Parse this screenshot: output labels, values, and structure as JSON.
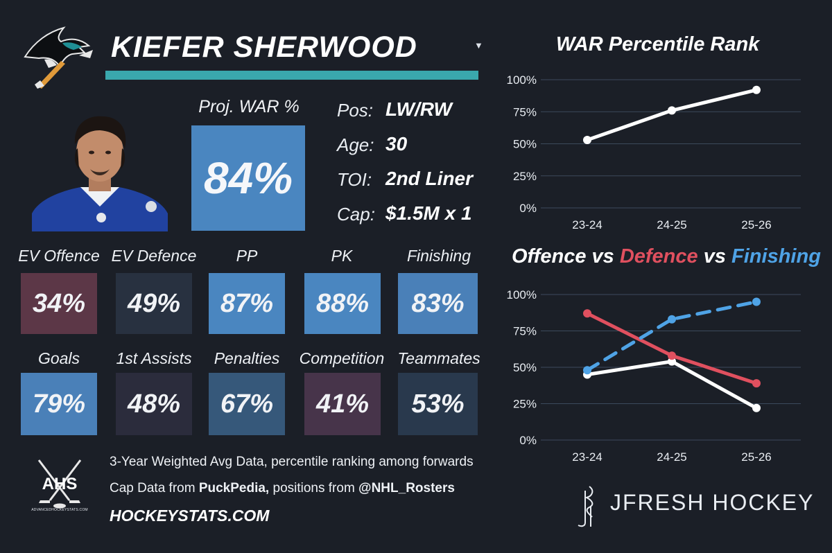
{
  "player": {
    "name": "KIEFER SHERWOOD",
    "war_label": "Proj. WAR %",
    "war_value": "84%",
    "war_color": "#4a86c0",
    "info": [
      {
        "label": "Pos:",
        "value": "LW/RW"
      },
      {
        "label": "Age:",
        "value": "30"
      },
      {
        "label": "TOI:",
        "value": "2nd Liner"
      },
      {
        "label": "Cap:",
        "value": "$1.5M x 1"
      }
    ]
  },
  "metrics_row1": [
    {
      "label": "EV Offence",
      "value": "34%",
      "color": "#5c3747"
    },
    {
      "label": "EV Defence",
      "value": "49%",
      "color": "#283140"
    },
    {
      "label": "PP",
      "value": "87%",
      "color": "#4a86c0"
    },
    {
      "label": "PK",
      "value": "88%",
      "color": "#4a86c0"
    },
    {
      "label": "Finishing",
      "value": "83%",
      "color": "#4a80b8"
    }
  ],
  "metrics_row2": [
    {
      "label": "Goals",
      "value": "79%",
      "color": "#4a80b8"
    },
    {
      "label": "1st Assists",
      "value": "48%",
      "color": "#2b2c3c"
    },
    {
      "label": "Penalties",
      "value": "67%",
      "color": "#36587a"
    },
    {
      "label": "Competition",
      "value": "41%",
      "color": "#47344a"
    },
    {
      "label": "Teammates",
      "value": "53%",
      "color": "#29394d"
    }
  ],
  "footer": {
    "line1": "3-Year Weighted Avg Data, percentile ranking among forwards",
    "line2_prefix": "Cap Data from ",
    "line2_bold1": "PuckPedia,",
    "line2_mid": " positions from ",
    "line2_bold2": "@NHL_Rosters",
    "site": "HOCKEYSTATS.COM",
    "ahs_logo_text": "AHS",
    "ahs_sub": "ADVANCEDHOCKEYSTATS.COM",
    "brand": "JFRESH HOCKEY"
  },
  "chart_data": [
    {
      "type": "line",
      "title": "WAR Percentile Rank",
      "categories": [
        "23-24",
        "24-25",
        "25-26"
      ],
      "y_ticks": [
        "0%",
        "25%",
        "50%",
        "75%",
        "100%"
      ],
      "ylim": [
        0,
        100
      ],
      "series": [
        {
          "name": "WAR",
          "values": [
            53,
            76,
            92
          ],
          "color": "#ffffff",
          "dashed": false
        }
      ]
    },
    {
      "type": "line",
      "title_parts": [
        {
          "text": "Offence",
          "color": "#ffffff"
        },
        {
          "text": " vs ",
          "color": "#ffffff"
        },
        {
          "text": "Defence",
          "color": "#e0505f"
        },
        {
          "text": " vs ",
          "color": "#ffffff"
        },
        {
          "text": "Finishing",
          "color": "#4fa3e6"
        }
      ],
      "categories": [
        "23-24",
        "24-25",
        "25-26"
      ],
      "y_ticks": [
        "0%",
        "25%",
        "50%",
        "75%",
        "100%"
      ],
      "ylim": [
        0,
        100
      ],
      "series": [
        {
          "name": "Offence",
          "values": [
            45,
            54,
            22
          ],
          "color": "#ffffff",
          "dashed": false
        },
        {
          "name": "Defence",
          "values": [
            87,
            58,
            39
          ],
          "color": "#e0505f",
          "dashed": false
        },
        {
          "name": "Finishing",
          "values": [
            48,
            83,
            95
          ],
          "color": "#4fa3e6",
          "dashed": true
        }
      ]
    }
  ]
}
